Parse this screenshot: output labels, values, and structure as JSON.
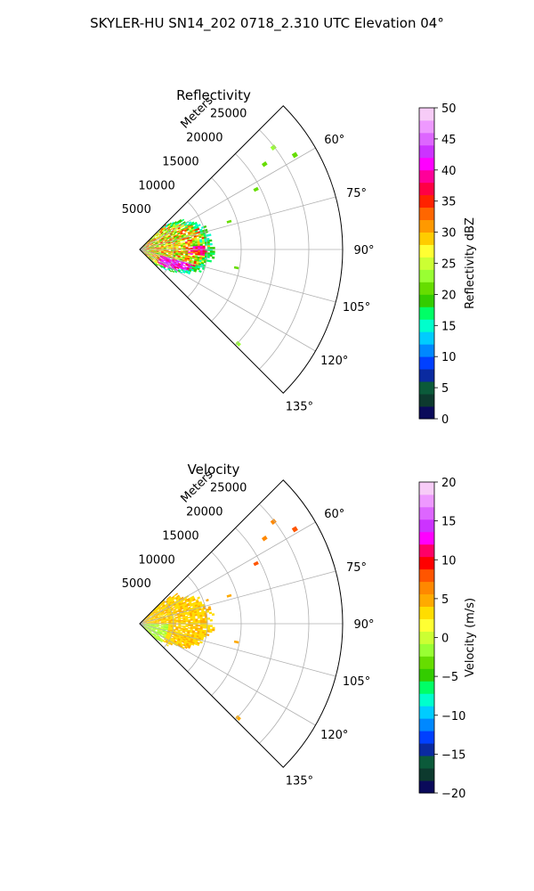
{
  "figure": {
    "suptitle": "SKYLER-HU  SN14_202  0718_2.310 UTC Elevation 04°"
  },
  "chart_data": [
    {
      "type": "heatmap",
      "title": "Reflectivity",
      "radial_axis_label": "Meters",
      "radial_ticks": [
        "5000",
        "10000",
        "15000",
        "20000",
        "25000"
      ],
      "radial_tick_values": [
        5000,
        10000,
        15000,
        20000,
        25000
      ],
      "angle_ticks": [
        "60°",
        "75°",
        "90°",
        "105°",
        "120°",
        "135°"
      ],
      "angle_tick_values": [
        60,
        75,
        90,
        105,
        120,
        135
      ],
      "theta_range": [
        45,
        135
      ],
      "r_range": [
        0,
        30000
      ],
      "grid": true,
      "colorbar": {
        "label": "Reflectivity dBZ",
        "range": [
          0,
          50
        ],
        "ticks": [
          "0",
          "5",
          "10",
          "15",
          "20",
          "25",
          "30",
          "35",
          "40",
          "45",
          "50"
        ],
        "colors": [
          "#0a0a5a",
          "#0d3a2e",
          "#0b5a3a",
          "#0a2aa0",
          "#0040ff",
          "#0088ff",
          "#00ccff",
          "#00ffcc",
          "#00ff66",
          "#33cc00",
          "#66dd00",
          "#99ff33",
          "#ccff33",
          "#ffff33",
          "#ffcc00",
          "#ff9900",
          "#ff6600",
          "#ff2200",
          "#ff0044",
          "#ff0099",
          "#ff00ff",
          "#cc33ff",
          "#dd66ff",
          "#ee99ff",
          "#f7ccf7"
        ]
      }
    },
    {
      "type": "heatmap",
      "title": "Velocity",
      "radial_axis_label": "Meters",
      "radial_ticks": [
        "5000",
        "10000",
        "15000",
        "20000",
        "25000"
      ],
      "radial_tick_values": [
        5000,
        10000,
        15000,
        20000,
        25000
      ],
      "angle_ticks": [
        "60°",
        "75°",
        "90°",
        "105°",
        "120°",
        "135°"
      ],
      "angle_tick_values": [
        60,
        75,
        90,
        105,
        120,
        135
      ],
      "theta_range": [
        45,
        135
      ],
      "r_range": [
        0,
        30000
      ],
      "grid": true,
      "colorbar": {
        "label": "Velocity (m/s)",
        "range": [
          -20,
          20
        ],
        "ticks": [
          "−20",
          "−15",
          "−10",
          "−5",
          "0",
          "5",
          "10",
          "15",
          "20"
        ],
        "colors": [
          "#0a0a5a",
          "#0d3a2e",
          "#0b5a3a",
          "#0a2aa0",
          "#0040ff",
          "#0088ff",
          "#00ccff",
          "#00ffcc",
          "#00ff66",
          "#33cc00",
          "#66dd00",
          "#99ff33",
          "#ccff33",
          "#ffff33",
          "#ffdd00",
          "#ffaa00",
          "#ff8800",
          "#ff5500",
          "#ff0000",
          "#ff0066",
          "#ff00ff",
          "#cc33ff",
          "#dd66ff",
          "#ee99ff",
          "#f7ccf7"
        ]
      }
    }
  ]
}
